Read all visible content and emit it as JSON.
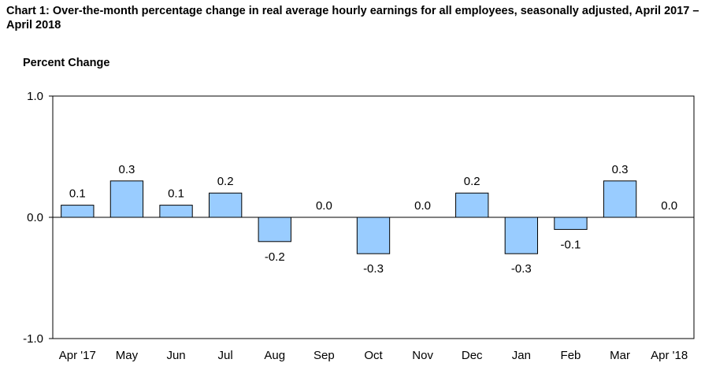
{
  "chart_data": {
    "type": "bar",
    "title": "Chart 1: Over-the-month percentage change in real average hourly earnings for all employees, seasonally adjusted, April 2017 – April 2018",
    "ylabel": "Percent Change",
    "xlabel": "",
    "categories": [
      "Apr '17",
      "May",
      "Jun",
      "Jul",
      "Aug",
      "Sep",
      "Oct",
      "Nov",
      "Dec",
      "Jan",
      "Feb",
      "Mar",
      "Apr '18"
    ],
    "values": [
      0.1,
      0.3,
      0.1,
      0.2,
      -0.2,
      0.0,
      -0.3,
      0.0,
      0.2,
      -0.3,
      -0.1,
      0.3,
      0.0
    ],
    "data_labels": [
      "0.1",
      "0.3",
      "0.1",
      "0.2",
      "-0.2",
      "0.0",
      "-0.3",
      "0.0",
      "0.2",
      "-0.3",
      "-0.1",
      "0.3",
      "0.0"
    ],
    "ylim": [
      -1.0,
      1.0
    ],
    "yticks": [
      "1.0",
      "0.0",
      "-1.0"
    ],
    "ytick_values": [
      1.0,
      0.0,
      -1.0
    ],
    "bar_color": "#99ccff",
    "bar_stroke": "#000000",
    "grid": false,
    "legend": "none"
  }
}
